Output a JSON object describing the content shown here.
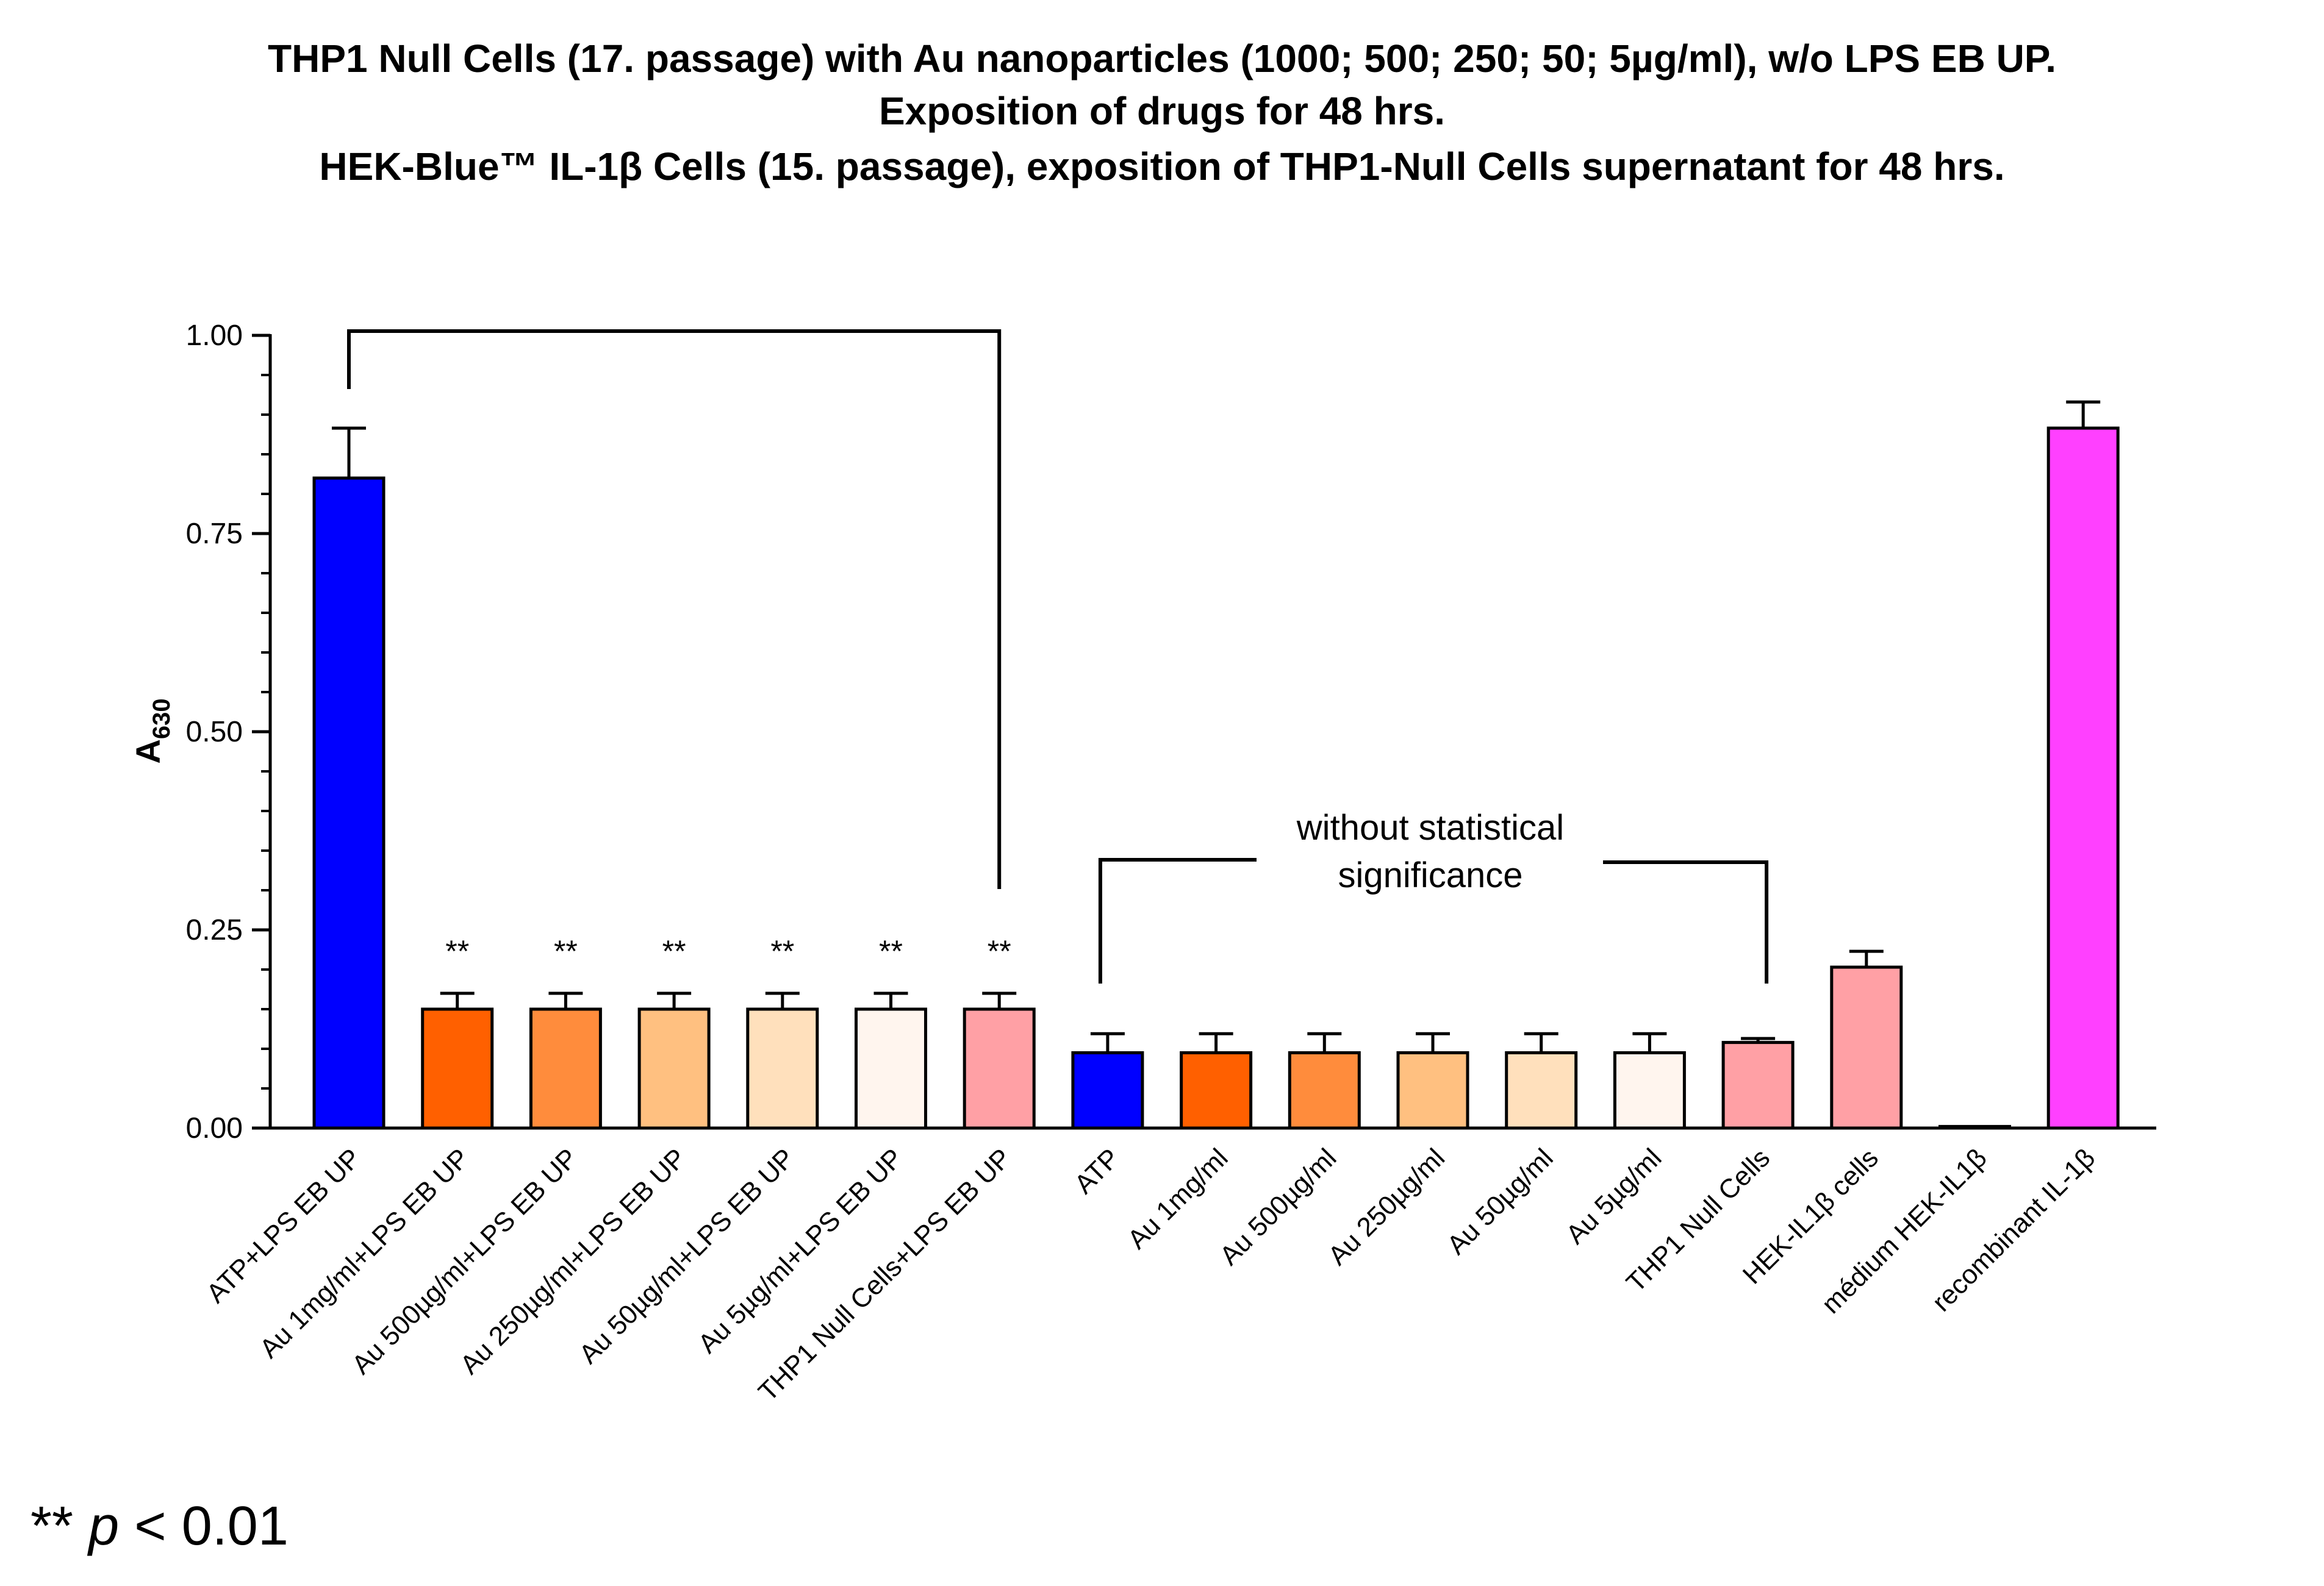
{
  "chart_data": {
    "type": "bar",
    "title_lines": [
      "THP1 Null Cells (17. passage) with Au nanoparticles (1000; 500; 250; 50; 5µg/ml),  w/o LPS EB UP.",
      "Exposition of drugs for 48 hrs.",
      "HEK-Blue™ IL-1β Cells (15. passage), exposition of THP1-Null Cells supernatant for 48 hrs."
    ],
    "ylabel_main": "A",
    "ylabel_sub": "630",
    "ylim": [
      0,
      1.0
    ],
    "yticks": [
      "0.00",
      "0.25",
      "0.50",
      "0.75",
      "1.00"
    ],
    "ytick_values": [
      0,
      0.25,
      0.5,
      0.75,
      1.0
    ],
    "categories": [
      "ATP+LPS EB UP",
      "Au 1mg/ml+LPS EB UP",
      "Au 500µg/ml+LPS EB UP",
      "Au 250µg/ml+LPS EB UP",
      "Au 50µg/ml+LPS EB UP",
      "Au 5µg/ml+LPS EB UP",
      "THP1 Null Cells+LPS EB UP",
      "ATP",
      "Au 1mg/ml",
      "Au 500µg/ml",
      "Au 250µg/ml",
      "Au 50µg/ml",
      "Au 5µg/ml",
      "THP1 Null Cells",
      "HEK-IL1β cells",
      "médium HEK-IL1β",
      "recombinant IL-1β"
    ],
    "values": [
      0.82,
      0.15,
      0.15,
      0.15,
      0.15,
      0.15,
      0.15,
      0.095,
      0.095,
      0.095,
      0.095,
      0.095,
      0.095,
      0.108,
      0.203,
      0.002,
      0.883
    ],
    "errors": [
      0.063,
      0.02,
      0.02,
      0.02,
      0.02,
      0.02,
      0.02,
      0.024,
      0.024,
      0.024,
      0.024,
      0.024,
      0.024,
      0.005,
      0.02,
      0,
      0.033
    ],
    "colors": [
      "#0000ff",
      "#ff6000",
      "#ff8c3c",
      "#ffc080",
      "#ffe0bc",
      "#fff5ee",
      "#ffa0a5",
      "#0000ff",
      "#ff6000",
      "#ff8c3c",
      "#ffc080",
      "#ffe0bc",
      "#fff5ee",
      "#ffa0a5",
      "#ffa0a5",
      "#ffffff",
      "#ff40ff"
    ],
    "significance_markers": [
      "",
      "**",
      "**",
      "**",
      "**",
      "**",
      "**",
      "",
      "",
      "",
      "",
      "",
      "",
      "",
      "",
      "",
      ""
    ],
    "bracket_significant": {
      "from_index": 0,
      "to_index": 6
    },
    "bracket_nonsignificant": {
      "from_index": 7,
      "to_index": 13,
      "label_lines": [
        "without statistical",
        "significance"
      ]
    },
    "footnote_stars": "**",
    "footnote_p": "p",
    "footnote_rest": " < 0.01"
  }
}
